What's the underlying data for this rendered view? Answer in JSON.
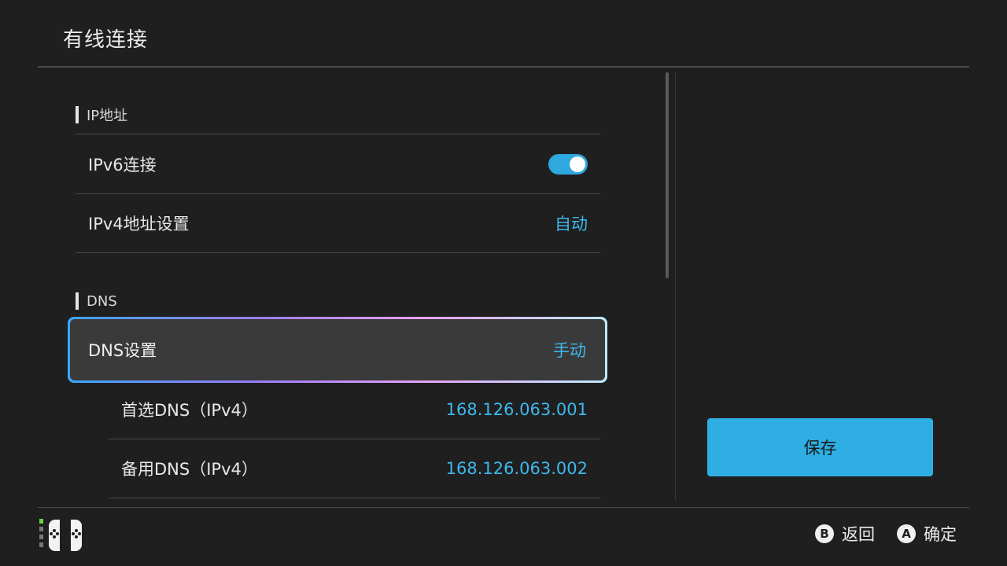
{
  "header": {
    "title": "有线连接"
  },
  "sections": {
    "ip": {
      "label": "IP地址",
      "rows": [
        {
          "label": "IPv6连接",
          "value": "on"
        },
        {
          "label": "IPv4地址设置",
          "value": "自动"
        }
      ]
    },
    "dns": {
      "label": "DNS",
      "selected_row": {
        "label": "DNS设置",
        "value": "手动"
      },
      "sub_rows": [
        {
          "label": "首选DNS（IPv4）",
          "value": "168.126.063.001"
        },
        {
          "label": "备用DNS（IPv4）",
          "value": "168.126.063.002"
        }
      ]
    }
  },
  "actions": {
    "save_label": "保存"
  },
  "footer": {
    "back": {
      "button": "B",
      "label": "返回"
    },
    "confirm": {
      "button": "A",
      "label": "确定"
    }
  },
  "colors": {
    "accent": "#2eaee3",
    "value_text": "#3eb8ec",
    "background": "#1f1f1f",
    "selected_row": "#3a3a3a"
  },
  "icons": {
    "controller": "joycon-controller-icon",
    "toggle": "toggle-switch-on"
  }
}
